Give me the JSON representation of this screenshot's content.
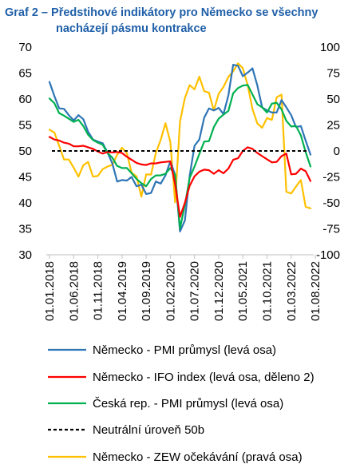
{
  "title_line1": "Graf 2 – Předstihové indikátory pro Německo se všechny",
  "title_line2": "nacházejí pásmu kontrakce",
  "chart_data": {
    "type": "line",
    "title": "Graf 2 – Předstihové indikátory pro Německo se všechny nacházejí pásmu kontrakce",
    "x_labels": [
      "01.01.2018",
      "01.06.2018",
      "01.11.2018",
      "01.04.2019",
      "01.09.2019",
      "01.02.2020",
      "01.07.2020",
      "01.12.2020",
      "01.05.2021",
      "01.10.2021",
      "01.03.2022",
      "01.08.2022"
    ],
    "x_range": [
      "2018-01",
      "2022-08"
    ],
    "left_axis": {
      "min": 30,
      "max": 70,
      "step": 5,
      "ticks": [
        "30",
        "35",
        "40",
        "45",
        "50",
        "55",
        "60",
        "65",
        "70"
      ]
    },
    "right_axis": {
      "min": -100,
      "max": 100,
      "step": 25,
      "ticks": [
        "-100",
        "-75",
        "-50",
        "-25",
        "0",
        "25",
        "50",
        "75",
        "100"
      ]
    },
    "grid": false,
    "legend_position": "bottom",
    "series": [
      {
        "name": "Německo - PMI průmysl (levá osa)",
        "axis": "left",
        "color": "#2e75b6",
        "style": "solid",
        "values": [
          63.3,
          60.6,
          58.2,
          58.1,
          56.9,
          55.9,
          56.9,
          56.1,
          53.7,
          52.2,
          51.8,
          51.5,
          49.7,
          47.6,
          44.1,
          44.4,
          44.3,
          45.0,
          43.2,
          43.5,
          41.7,
          41.9,
          44.1,
          43.7,
          45.3,
          48.0,
          45.4,
          34.5,
          36.6,
          45.2,
          51.0,
          52.2,
          56.4,
          58.2,
          57.8,
          58.3,
          57.1,
          60.7,
          66.6,
          66.4,
          64.4,
          65.1,
          65.9,
          62.6,
          58.4,
          57.8,
          57.4,
          57.4,
          59.8,
          58.4,
          56.9,
          54.6,
          54.8,
          52.0,
          49.3
        ],
        "data_labels": []
      },
      {
        "name": "Německo - IFO index (levá osa, děleno 2)",
        "axis": "left",
        "color": "#ff0000",
        "style": "solid",
        "values": [
          52.7,
          52.2,
          52.0,
          51.6,
          51.4,
          50.9,
          50.9,
          51.0,
          50.7,
          50.4,
          49.9,
          49.5,
          49.8,
          49.7,
          49.8,
          49.6,
          48.9,
          48.3,
          47.7,
          47.4,
          47.3,
          47.6,
          47.6,
          47.8,
          47.9,
          48.0,
          43.6,
          37.3,
          40.0,
          43.3,
          45.1,
          46.0,
          46.4,
          46.3,
          45.6,
          46.3,
          45.7,
          46.6,
          48.3,
          48.6,
          50.0,
          50.7,
          50.4,
          49.6,
          49.0,
          48.4,
          47.8,
          47.9,
          49.0,
          49.5,
          45.5,
          45.6,
          46.6,
          46.1,
          44.2
        ],
        "data_labels": []
      },
      {
        "name": "Česká rep. - PMI průmysl (levá osa)",
        "axis": "left",
        "color": "#00b050",
        "style": "solid",
        "values": [
          60.1,
          59.2,
          57.3,
          56.8,
          56.2,
          55.6,
          56.0,
          54.8,
          53.1,
          52.1,
          51.6,
          51.2,
          49.6,
          48.7,
          47.1,
          46.7,
          46.7,
          45.7,
          44.6,
          43.8,
          43.2,
          44.6,
          45.3,
          45.3,
          45.6,
          46.7,
          45.3,
          35.1,
          39.6,
          44.8,
          47.0,
          49.4,
          51.8,
          51.9,
          54.6,
          56.2,
          57.0,
          57.7,
          61.1,
          62.1,
          62.6,
          62.7,
          60.9,
          59.0,
          58.4,
          57.4,
          59.1,
          59.3,
          58.0,
          55.8,
          54.7,
          54.8,
          53.0,
          49.8,
          47.0
        ],
        "data_labels": []
      },
      {
        "name": "Neutrální úroveň 50b",
        "axis": "left",
        "color": "#000000",
        "style": "dashed",
        "values": [
          50,
          50,
          50,
          50,
          50,
          50,
          50,
          50,
          50,
          50,
          50,
          50,
          50,
          50,
          50,
          50,
          50,
          50,
          50,
          50,
          50,
          50,
          50,
          50,
          50,
          50,
          50,
          50,
          50,
          50,
          50,
          50,
          50,
          50,
          50,
          50,
          50,
          50,
          50,
          50,
          50,
          50,
          50,
          50,
          50,
          50,
          50,
          50,
          50,
          50,
          50,
          50,
          50,
          50,
          50
        ],
        "data_labels": []
      },
      {
        "name": "Německo - ZEW očekávání (pravá osa)",
        "axis": "right",
        "color": "#ffc000",
        "style": "solid",
        "values": [
          20.4,
          17.8,
          5.1,
          -8.2,
          -8.2,
          -16.1,
          -24.7,
          -13.7,
          -10.6,
          -24.7,
          -24.1,
          -17.5,
          -15.0,
          -13.4,
          -3.6,
          3.1,
          -2.1,
          -21.1,
          -24.5,
          -44.1,
          -22.5,
          -22.8,
          -2.1,
          10.7,
          26.7,
          8.7,
          -49.5,
          28.2,
          51.0,
          63.4,
          59.3,
          71.5,
          57.6,
          56.1,
          39.0,
          55.0,
          61.8,
          71.2,
          76.6,
          84.4,
          79.8,
          63.3,
          40.4,
          26.5,
          22.3,
          31.7,
          29.9,
          51.7,
          54.3,
          -39.3,
          -41.0,
          -34.3,
          -28.0,
          -53.8,
          -55.3
        ],
        "data_labels": []
      }
    ]
  }
}
